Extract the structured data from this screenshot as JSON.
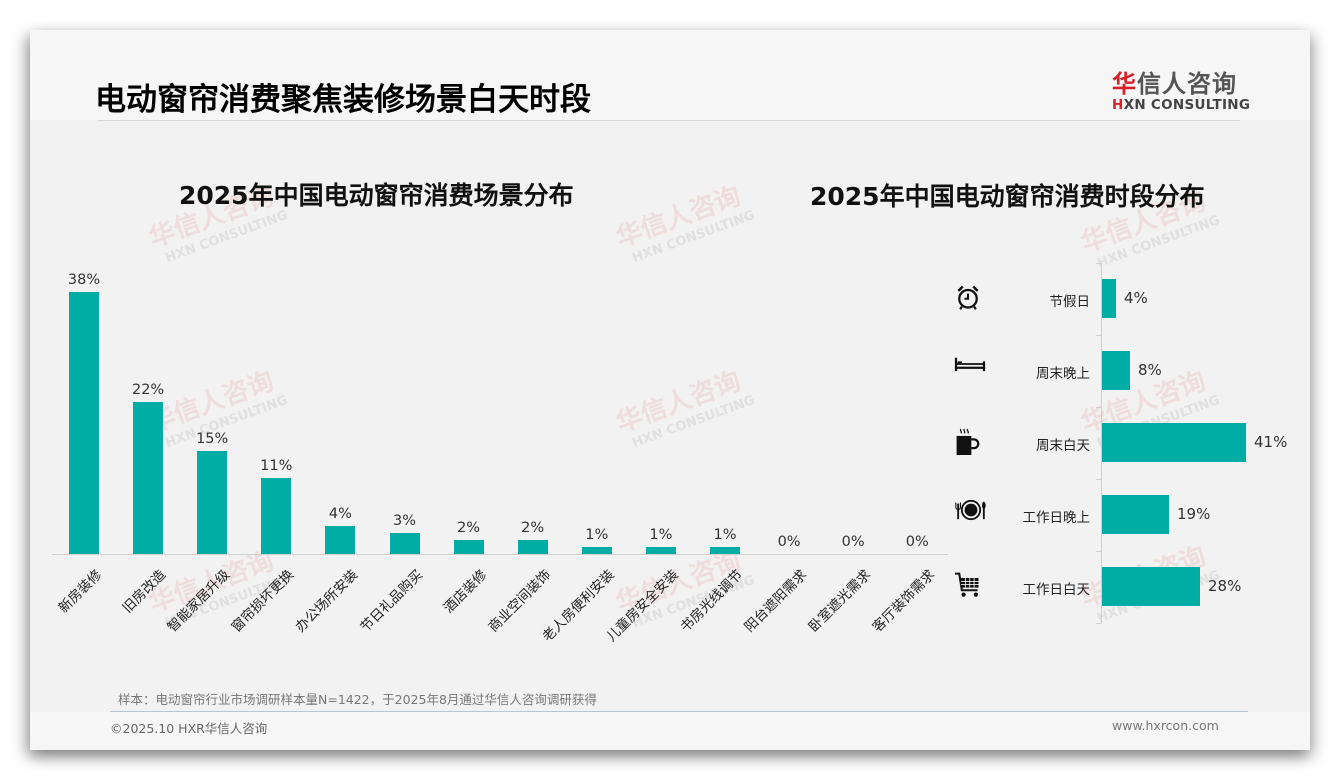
{
  "header": {
    "title": "电动窗帘消费聚焦装修场景白天时段",
    "logo": {
      "cn_mark": "华",
      "cn_rest": "信人咨询",
      "en_mark": "H",
      "en_rest": "XN CONSULTING"
    }
  },
  "watermark": {
    "cn": "华信人咨询",
    "en": "HXN CONSULTING"
  },
  "colors": {
    "bar": "#00ada5",
    "brand_red": "#d61f26",
    "background": "#f2f2f2"
  },
  "chart_data": [
    {
      "type": "bar",
      "title": "2025年中国电动窗帘消费场景分布",
      "xlabel": "",
      "ylabel": "",
      "categories": [
        "新房装修",
        "旧房改造",
        "智能家居升级",
        "窗帘损坏更换",
        "办公场所安装",
        "节日礼品购买",
        "酒店装修",
        "商业空间装饰",
        "老人房便利安装",
        "儿童房安全安装",
        "书房光线调节",
        "阳台遮阳需求",
        "卧室遮光需求",
        "客厅装饰需求"
      ],
      "values": [
        38,
        22,
        15,
        11,
        4,
        3,
        2,
        2,
        1,
        1,
        1,
        0,
        0,
        0
      ],
      "value_labels": [
        "38%",
        "22%",
        "15%",
        "11%",
        "4%",
        "3%",
        "2%",
        "2%",
        "1%",
        "1%",
        "1%",
        "0%",
        "0%",
        "0%"
      ],
      "unit": "%",
      "ylim": [
        0,
        40
      ],
      "grid": false,
      "legend": null
    },
    {
      "type": "bar",
      "orientation": "horizontal",
      "title": "2025年中国电动窗帘消费时段分布",
      "categories": [
        "节假日",
        "周末晚上",
        "周末白天",
        "工作日晚上",
        "工作日白天"
      ],
      "values": [
        4,
        8,
        41,
        19,
        28
      ],
      "value_labels": [
        "4%",
        "8%",
        "41%",
        "19%",
        "28%"
      ],
      "icons": [
        "alarm-clock-icon",
        "bed-icon",
        "coffee-cup-icon",
        "dining-plate-icon",
        "shopping-cart-icon"
      ],
      "unit": "%",
      "xlim": [
        0,
        45
      ],
      "grid": false,
      "legend": null
    }
  ],
  "footer": {
    "note": "样本：电动窗帘行业市场调研样本量N=1422，于2025年8月通过华信人咨询调研获得",
    "copyright": "©2025.10 HXR华信人咨询",
    "website": "www.hxrcon.com"
  }
}
